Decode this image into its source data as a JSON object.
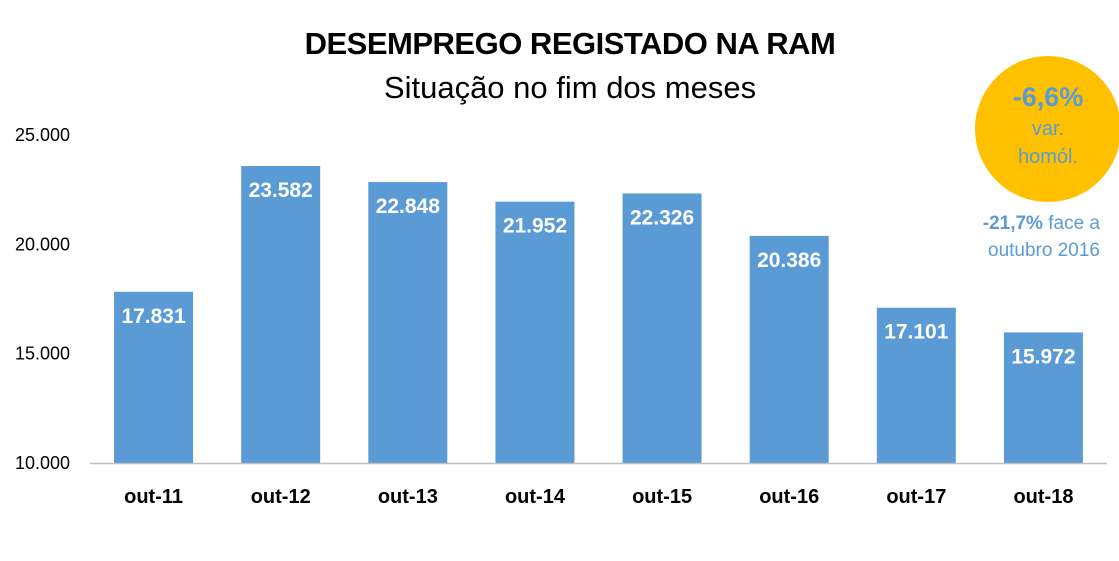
{
  "title": "DESEMPREGO REGISTADO NA RAM",
  "subtitle": "Situação no fim dos meses",
  "badge": {
    "value": "-6,6%",
    "line1": "var.",
    "line2": "homól.",
    "color": "#FFC000"
  },
  "note": {
    "value": "-21,7%",
    "text1": " face a",
    "text2": "outubro 2016"
  },
  "colors": {
    "bar": "#5B9BD5",
    "axis": "#BFBFBF",
    "accent": "#5B9BD5"
  },
  "chart_data": {
    "type": "bar",
    "categories": [
      "out-11",
      "out-12",
      "out-13",
      "out-14",
      "out-15",
      "out-16",
      "out-17",
      "out-18"
    ],
    "values": [
      17831,
      23582,
      22848,
      21952,
      22326,
      20386,
      17101,
      15972
    ],
    "value_labels": [
      "17.831",
      "23.582",
      "22.848",
      "21.952",
      "22.326",
      "20.386",
      "17.101",
      "15.972"
    ],
    "ylim": [
      10000,
      25000
    ],
    "yticks": [
      10000,
      15000,
      20000,
      25000
    ],
    "ytick_labels": [
      "10.000",
      "15.000",
      "20.000",
      "25.000"
    ],
    "grid": false,
    "legend": "none"
  }
}
